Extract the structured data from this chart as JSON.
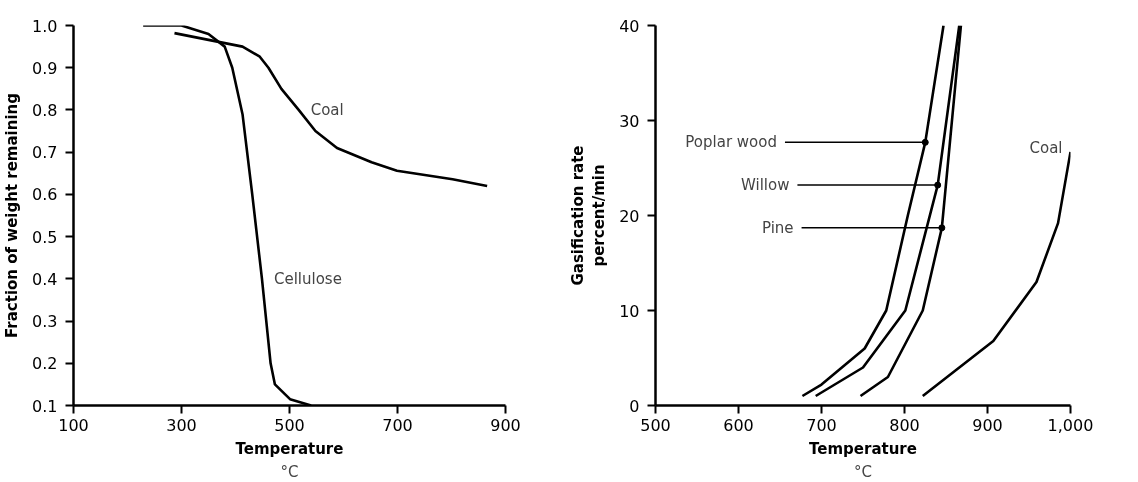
{
  "chart_data": [
    {
      "type": "line",
      "xlabel": "Temperature\n°C",
      "ylabel": "Fraction of weight remaining",
      "xlim": [
        100,
        900
      ],
      "ylim": [
        0.1,
        1.0
      ],
      "xticks": [
        100,
        300,
        500,
        700,
        900
      ],
      "yticks": [
        {
          "value": 0.1,
          "label": "0.1"
        },
        {
          "value": 0.2,
          "label": "0.2"
        },
        {
          "value": 0.3,
          "label": "0.3"
        },
        {
          "value": 0.4,
          "label": "0.4"
        },
        {
          "value": 0.5,
          "label": "0.5"
        },
        {
          "value": 0.6,
          "label": "0.6"
        },
        {
          "value": 0.7,
          "label": "0.7"
        },
        {
          "value": 0.8,
          "label": "0.8"
        },
        {
          "value": 0.9,
          "label": "0.9"
        },
        {
          "value": 1.0,
          "label": "1.0"
        }
      ],
      "grid": false,
      "series": [
        {
          "color": "#000000",
          "x": [
            229,
            300,
            350,
            380,
            394,
            413,
            431,
            449,
            465,
            473,
            501,
            540
          ],
          "values": [
            1.0,
            1.0,
            0.98,
            0.95,
            0.9,
            0.79,
            0.6,
            0.4,
            0.2,
            0.15,
            0.115,
            0.1
          ]
        },
        {
          "color": "#000000",
          "x": [
            287,
            350,
            413,
            445,
            461,
            485,
            517,
            548,
            588,
            652,
            699,
            802,
            866
          ],
          "values": [
            0.982,
            0.966,
            0.95,
            0.926,
            0.9,
            0.85,
            0.8,
            0.75,
            0.71,
            0.676,
            0.656,
            0.636,
            0.62
          ]
        }
      ],
      "annotations": [
        {
          "text": "Coal",
          "x": 517,
          "y": 0.8
        },
        {
          "text": "Cellulose",
          "x": 449,
          "y": 0.4
        }
      ]
    },
    {
      "type": "line",
      "xlabel": "Temperature\n°C",
      "ylabel": "Gasification rate\npercent/min",
      "xlim": [
        500,
        1000
      ],
      "ylim": [
        0,
        40
      ],
      "xticks": [
        500,
        600,
        700,
        800,
        900,
        {
          "value": 1000,
          "label": "1,000"
        }
      ],
      "yticks": [
        0,
        10,
        20,
        30,
        40
      ],
      "grid": false,
      "series": [
        {
          "color": "#000000",
          "x": [
            677,
            700,
            752,
            778,
            804,
            825,
            847
          ],
          "values": [
            1,
            2.2,
            6,
            10,
            20,
            27.7,
            40
          ]
        },
        {
          "color": "#000000",
          "x": [
            693,
            750,
            801,
            840,
            866
          ],
          "values": [
            1,
            4,
            10,
            23.2,
            40
          ]
        },
        {
          "color": "#000000",
          "x": [
            747,
            780,
            822,
            845,
            868
          ],
          "values": [
            1,
            3,
            10,
            18.7,
            40
          ]
        },
        {
          "color": "#000000",
          "x": [
            822,
            907,
            959,
            985,
            1000
          ],
          "values": [
            1,
            6.8,
            13,
            19.2,
            26.7
          ]
        }
      ],
      "annotations": [
        {
          "text": "Poplar wood",
          "x": 825,
          "y": 27.7
        },
        {
          "text": "Willow",
          "x": 840,
          "y": 23.2
        },
        {
          "text": "Pine",
          "x": 845,
          "y": 18.7
        },
        {
          "text": "Coal",
          "x": 1000,
          "y": 26.7
        }
      ]
    }
  ]
}
